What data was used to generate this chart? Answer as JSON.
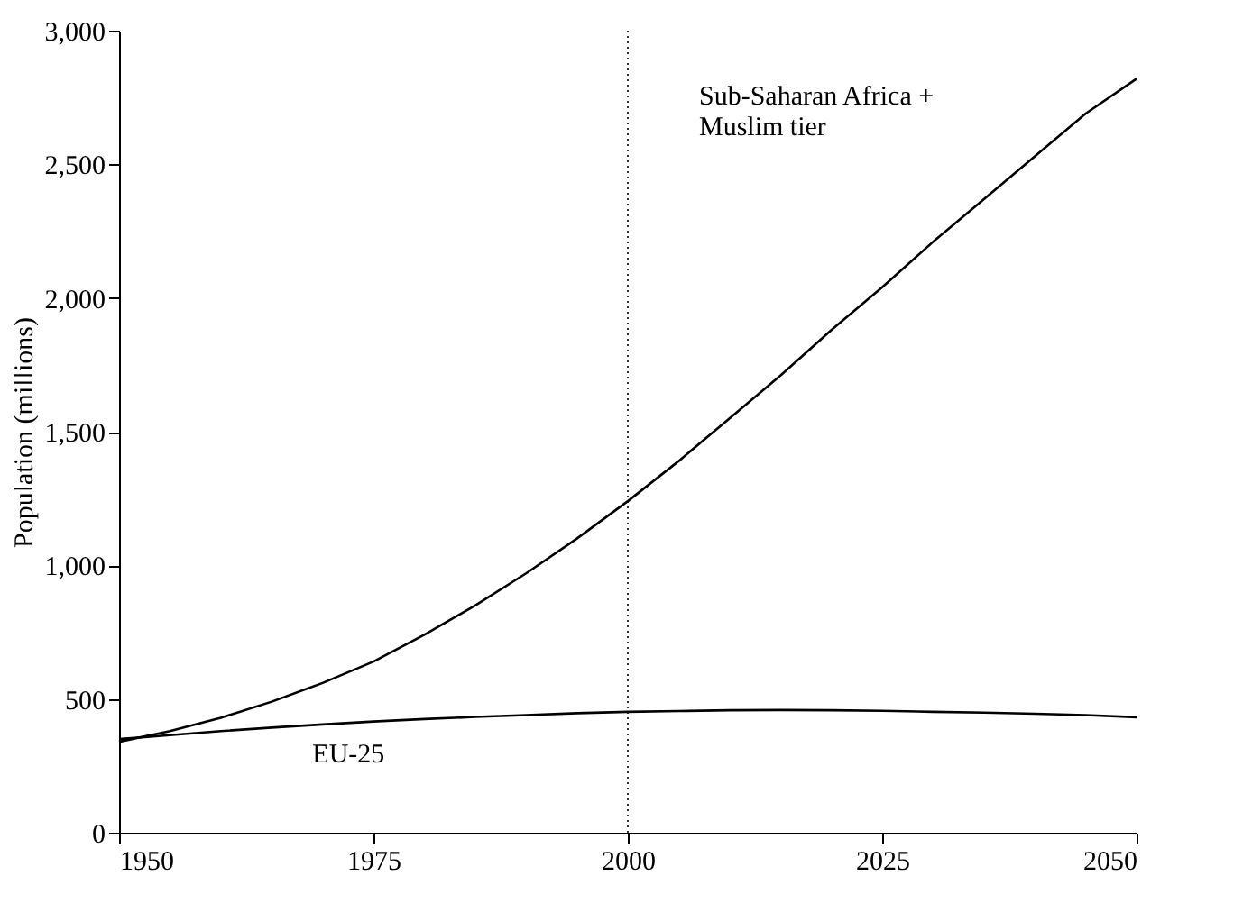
{
  "chart_data": {
    "type": "line",
    "ylabel": "Population (millions)",
    "x": [
      1950,
      1955,
      1960,
      1965,
      1970,
      1975,
      1980,
      1985,
      1990,
      1995,
      2000,
      2005,
      2010,
      2015,
      2020,
      2025,
      2030,
      2035,
      2040,
      2045,
      2050
    ],
    "series": [
      {
        "name": "Sub-Saharan Africa +\nMuslim tier",
        "color": "#000000",
        "values": [
          340,
          380,
          430,
          490,
          560,
          640,
          740,
          850,
          970,
          1100,
          1240,
          1390,
          1550,
          1710,
          1880,
          2040,
          2210,
          2370,
          2530,
          2690,
          2820
        ]
      },
      {
        "name": "EU-25",
        "color": "#000000",
        "values": [
          350,
          365,
          380,
          393,
          405,
          416,
          425,
          433,
          440,
          447,
          452,
          455,
          458,
          459,
          458,
          456,
          452,
          449,
          445,
          440,
          432
        ]
      }
    ],
    "xlim": [
      1950,
      2050
    ],
    "xticks": [
      1950,
      1975,
      2000,
      2025,
      2050
    ],
    "ylim": [
      0,
      3000
    ],
    "yticks": [
      0,
      500,
      {
        "value": 1000,
        "label": "1,000"
      },
      {
        "value": 1500,
        "label": "1,500"
      },
      {
        "value": 2000,
        "label": "2,000"
      },
      {
        "value": 2500,
        "label": "2,500"
      },
      {
        "value": 3000,
        "label": "3,000"
      }
    ],
    "ref_lines": [
      {
        "axis": "x",
        "value": 2000,
        "color": "#000000",
        "line_style": "dotted"
      }
    ],
    "grid": false,
    "legend": false,
    "marker": "none",
    "line_style": "solid"
  }
}
